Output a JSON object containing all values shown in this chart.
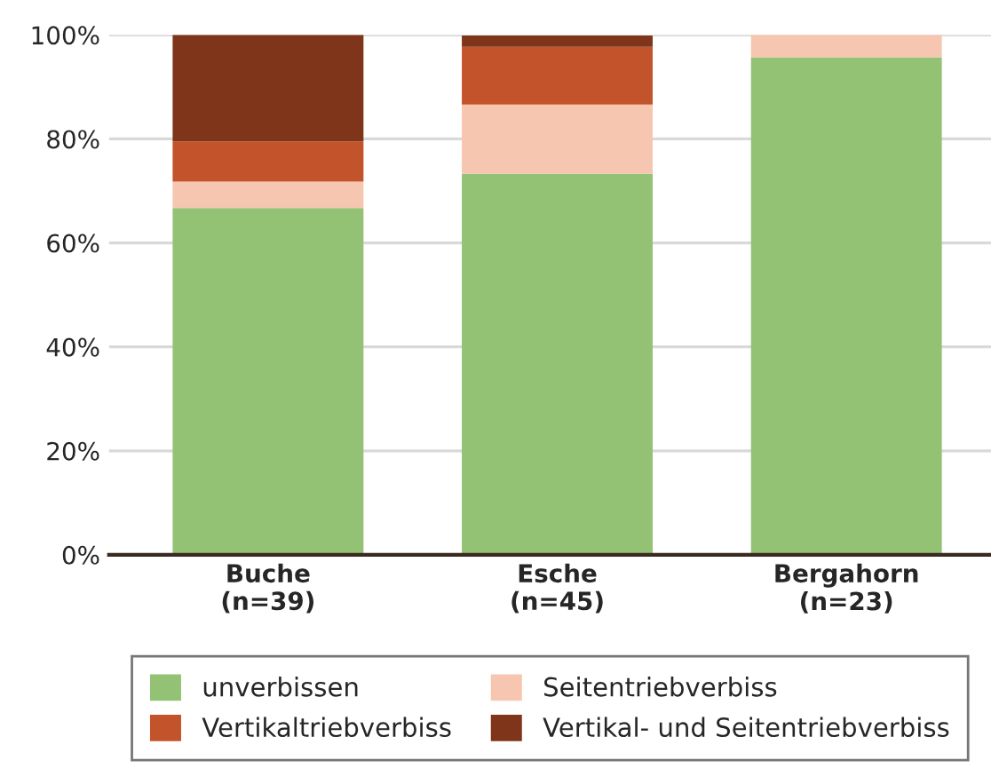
{
  "chart_data": {
    "type": "bar",
    "stacked": true,
    "categories": [
      "Buche\n(n=39)",
      "Esche\n(n=45)",
      "Bergahorn\n(n=23)"
    ],
    "series": [
      {
        "name": "unverbissen",
        "color": "#94c275",
        "values": [
          66.7,
          73.3,
          95.7
        ]
      },
      {
        "name": "Seitentriebverbiss",
        "color": "#f7c6b0",
        "values": [
          5.1,
          13.3,
          4.3
        ]
      },
      {
        "name": "Vertikaltriebverbiss",
        "color": "#c3532b",
        "values": [
          7.7,
          11.1,
          0
        ]
      },
      {
        "name": "Vertikal- und Seitentriebverbiss",
        "color": "#7f351a",
        "values": [
          20.5,
          2.2,
          0
        ]
      }
    ],
    "ylim": [
      0,
      100
    ],
    "yticks": [
      {
        "value": 0,
        "label": "0%"
      },
      {
        "value": 20,
        "label": "20%"
      },
      {
        "value": 40,
        "label": "40%"
      },
      {
        "value": 60,
        "label": "60%"
      },
      {
        "value": 80,
        "label": "80%"
      },
      {
        "value": 100,
        "label": "100%"
      }
    ],
    "grid": "y",
    "legend": "bottom"
  }
}
